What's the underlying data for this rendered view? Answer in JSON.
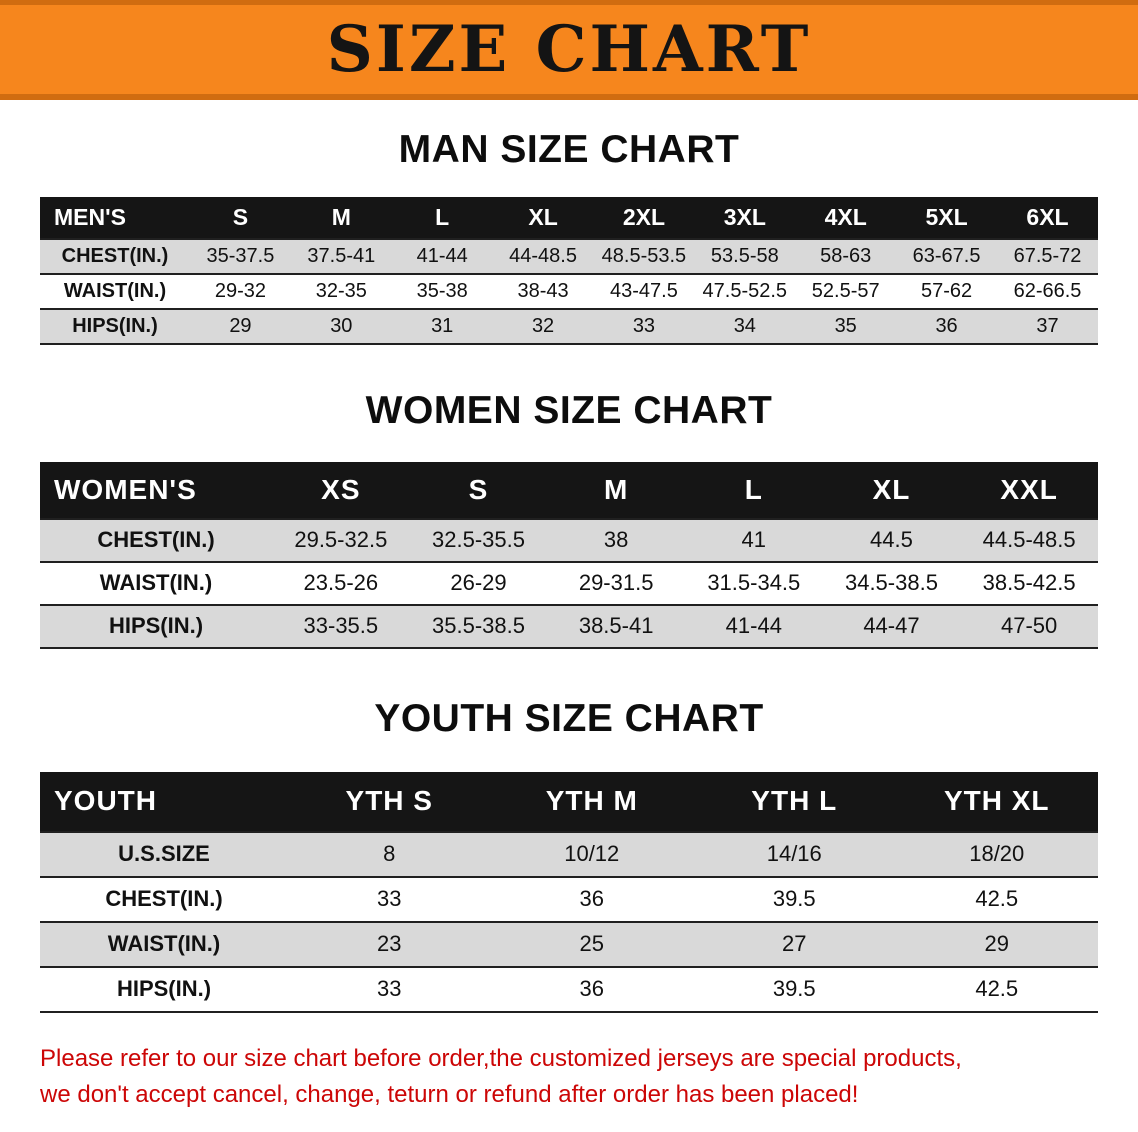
{
  "banner": {
    "title": "SIZE CHART"
  },
  "colors": {
    "banner_orange": "#f6861d",
    "banner_edge": "#d06c10",
    "table_header_bg": "#151515",
    "row_alt_gray": "#d9d9d9",
    "note_red": "#cc0606"
  },
  "sections": [
    {
      "heading": "MAN SIZE CHART",
      "table": {
        "header": [
          "MEN'S",
          "S",
          "M",
          "L",
          "XL",
          "2XL",
          "3XL",
          "4XL",
          "5XL",
          "6XL"
        ],
        "rows": [
          [
            "CHEST(IN.)",
            "35-37.5",
            "37.5-41",
            "41-44",
            "44-48.5",
            "48.5-53.5",
            "53.5-58",
            "58-63",
            "63-67.5",
            "67.5-72"
          ],
          [
            "WAIST(IN.)",
            "29-32",
            "32-35",
            "35-38",
            "38-43",
            "43-47.5",
            "47.5-52.5",
            "52.5-57",
            "57-62",
            "62-66.5"
          ],
          [
            "HIPS(IN.)",
            "29",
            "30",
            "31",
            "32",
            "33",
            "34",
            "35",
            "36",
            "37"
          ]
        ]
      }
    },
    {
      "heading": "WOMEN SIZE CHART",
      "table": {
        "header": [
          "WOMEN'S",
          "XS",
          "S",
          "M",
          "L",
          "XL",
          "XXL"
        ],
        "rows": [
          [
            "CHEST(IN.)",
            "29.5-32.5",
            "32.5-35.5",
            "38",
            "41",
            "44.5",
            "44.5-48.5"
          ],
          [
            "WAIST(IN.)",
            "23.5-26",
            "26-29",
            "29-31.5",
            "31.5-34.5",
            "34.5-38.5",
            "38.5-42.5"
          ],
          [
            "HIPS(IN.)",
            "33-35.5",
            "35.5-38.5",
            "38.5-41",
            "41-44",
            "44-47",
            "47-50"
          ]
        ]
      }
    },
    {
      "heading": "YOUTH SIZE CHART",
      "table": {
        "header": [
          "YOUTH",
          "YTH S",
          "YTH M",
          "YTH L",
          "YTH XL"
        ],
        "rows": [
          [
            "U.S.SIZE",
            "8",
            "10/12",
            "14/16",
            "18/20"
          ],
          [
            "CHEST(IN.)",
            "33",
            "36",
            "39.5",
            "42.5"
          ],
          [
            "WAIST(IN.)",
            "23",
            "25",
            "27",
            "29"
          ],
          [
            "HIPS(IN.)",
            "33",
            "36",
            "39.5",
            "42.5"
          ]
        ]
      }
    }
  ],
  "note": {
    "line1": "Please refer to our size chart before order,the customized jerseys are special products,",
    "line2": "we don't accept cancel, change, teturn or refund after order has been placed!"
  }
}
